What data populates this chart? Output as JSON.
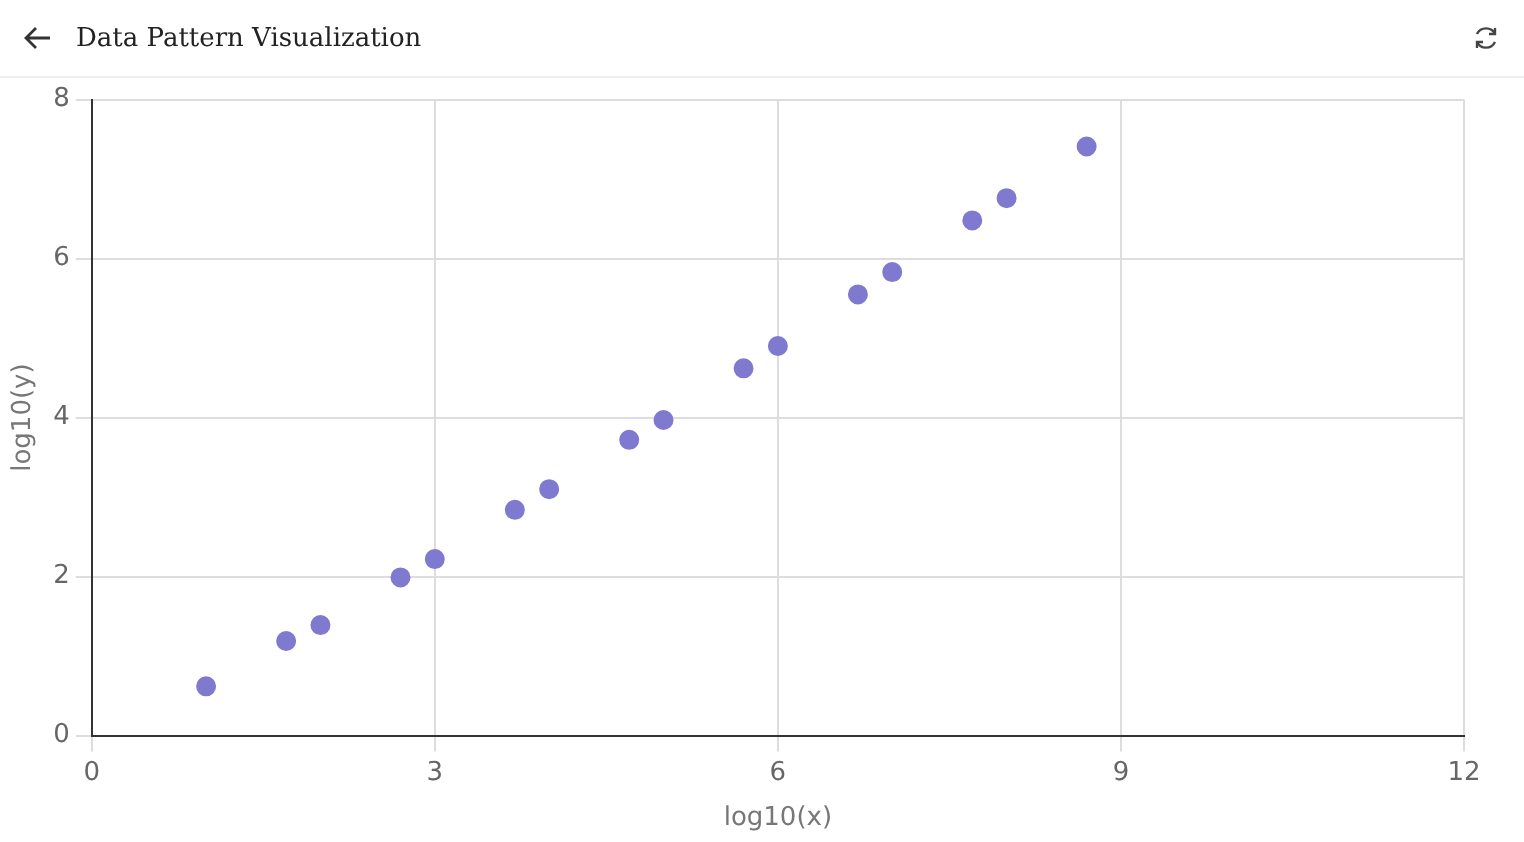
{
  "chart_data": {
    "type": "scatter",
    "title": "Data Pattern Visualization",
    "xlabel": "log10(x)",
    "ylabel": "log10(y)",
    "x": [
      1.0,
      1.7,
      2.0,
      2.7,
      3.0,
      3.7,
      4.0,
      4.7,
      5.0,
      5.7,
      6.0,
      6.7,
      7.0,
      7.7,
      8.0,
      8.7
    ],
    "series": [
      {
        "color": "#8079d0",
        "values": [
          0.62,
          1.19,
          1.39,
          1.99,
          2.22,
          2.84,
          3.1,
          3.72,
          3.97,
          4.62,
          4.9,
          5.55,
          5.83,
          6.48,
          6.76,
          7.41
        ]
      }
    ],
    "xlim": [
      0,
      12
    ],
    "xticks": [
      0,
      3,
      6,
      9,
      12
    ],
    "ylim": [
      0,
      8
    ],
    "yticks": [
      0,
      2,
      4,
      6,
      8
    ],
    "grid": true,
    "legend": false,
    "marker": "circle"
  }
}
